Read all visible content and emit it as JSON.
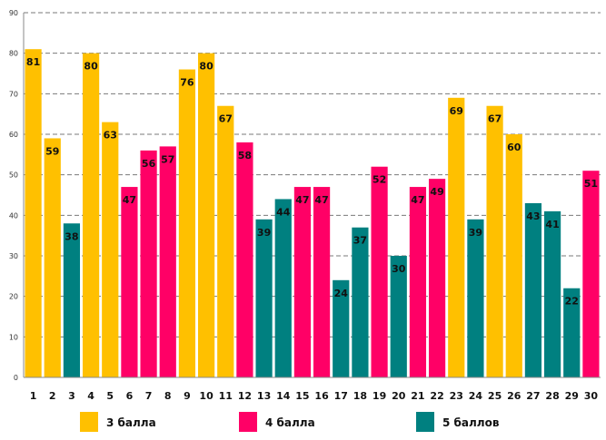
{
  "chart_data": {
    "type": "bar",
    "categories": [
      "1",
      "2",
      "3",
      "4",
      "5",
      "6",
      "7",
      "8",
      "9",
      "10",
      "11",
      "12",
      "13",
      "14",
      "15",
      "16",
      "17",
      "18",
      "19",
      "20",
      "21",
      "22",
      "23",
      "24",
      "25",
      "26",
      "27",
      "28",
      "29",
      "30"
    ],
    "values": [
      81,
      59,
      38,
      80,
      63,
      47,
      56,
      57,
      76,
      80,
      67,
      58,
      39,
      44,
      47,
      47,
      24,
      37,
      52,
      30,
      47,
      49,
      69,
      39,
      67,
      60,
      43,
      41,
      22,
      51
    ],
    "groups": [
      0,
      0,
      2,
      0,
      0,
      1,
      1,
      1,
      0,
      0,
      0,
      1,
      2,
      2,
      1,
      1,
      2,
      2,
      1,
      2,
      1,
      1,
      0,
      2,
      0,
      0,
      2,
      2,
      2,
      1
    ],
    "y_ticks": [
      0,
      10,
      20,
      30,
      40,
      50,
      60,
      70,
      80,
      90
    ],
    "ylim": [
      0,
      90
    ],
    "grid": true,
    "legend": [
      {
        "label": "3 балла",
        "color": "#FFC000"
      },
      {
        "label": "4 балла",
        "color": "#FF0066"
      },
      {
        "label": "5 баллов",
        "color": "#008080"
      }
    ],
    "legend_position": "bottom"
  }
}
